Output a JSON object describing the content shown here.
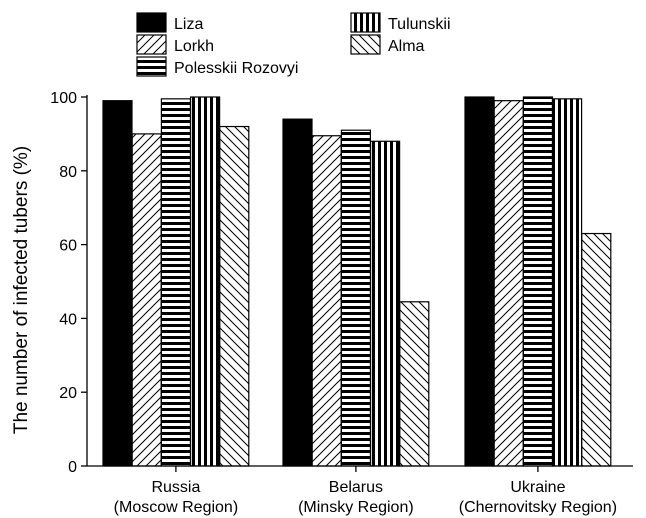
{
  "chart_data": {
    "type": "bar",
    "title": "",
    "xlabel": "",
    "ylabel": "The number of infected tubers (%)",
    "ylim": [
      0,
      100
    ],
    "yticks": [
      0,
      20,
      40,
      60,
      80,
      100
    ],
    "grid": false,
    "legend_position": "top-left",
    "categories": [
      [
        "Russia",
        "(Moscow Region)"
      ],
      [
        "Belarus",
        "(Minsky Region)"
      ],
      [
        "Ukraine",
        "(Chernovitsky Region)"
      ]
    ],
    "series": [
      {
        "name": "Liza",
        "pattern": "solid",
        "values": [
          99,
          94,
          100
        ]
      },
      {
        "name": "Lorkh",
        "pattern": "diagonal-up",
        "values": [
          90,
          89.5,
          99
        ]
      },
      {
        "name": "Polesskii Rozovyi",
        "pattern": "horizontal-stripes",
        "values": [
          99.5,
          91,
          100
        ]
      },
      {
        "name": "Tulunskii",
        "pattern": "vertical-stripes",
        "values": [
          100,
          88,
          99.5
        ]
      },
      {
        "name": "Alma",
        "pattern": "diagonal-down",
        "values": [
          92,
          44.5,
          63
        ]
      }
    ]
  }
}
